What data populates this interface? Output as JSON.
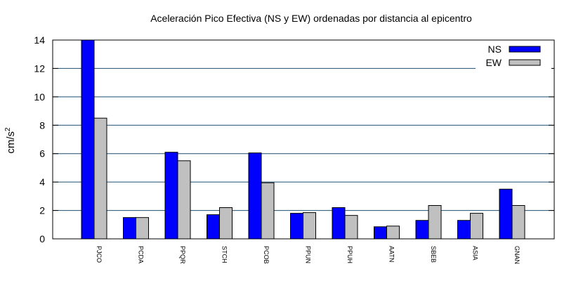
{
  "chart_data": {
    "type": "bar",
    "title": "Aceleración Pico Efectiva (NS y EW) ordenadas por distancia al epicentro",
    "xlabel": "",
    "ylabel": "cm/s",
    "ylabel_superscript": "2",
    "ylim": [
      0,
      14
    ],
    "yticks": [
      "0",
      "2",
      "4",
      "6",
      "8",
      "10",
      "12",
      "14"
    ],
    "grid": true,
    "legend_position": "top-right",
    "categories": [
      "PJCO",
      "PCDA",
      "PPQR",
      "STCH",
      "PCOB",
      "PPUN",
      "PPUH",
      "AATN",
      "SBEB",
      "ASIA",
      "GNAN"
    ],
    "series": [
      {
        "name": "NS",
        "color": "#0000ff",
        "values": [
          14.0,
          1.5,
          6.1,
          1.7,
          6.05,
          1.8,
          2.2,
          0.85,
          1.3,
          1.3,
          3.5
        ]
      },
      {
        "name": "EW",
        "color": "#c0c0c0",
        "values": [
          8.5,
          1.5,
          5.5,
          2.2,
          3.95,
          1.85,
          1.65,
          0.9,
          2.35,
          1.8,
          2.35
        ]
      }
    ]
  }
}
